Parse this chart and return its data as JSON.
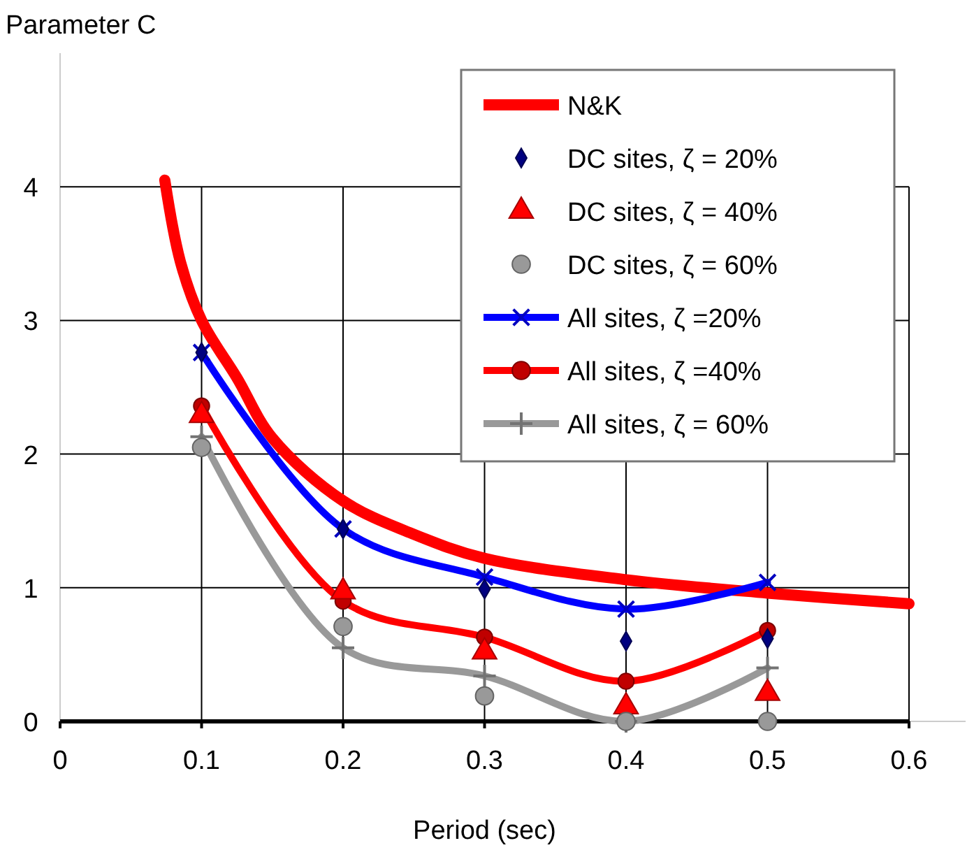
{
  "chart_data": {
    "type": "line",
    "ylabel": "Parameter C",
    "xlabel": "Period (sec)",
    "xlim": [
      0,
      0.64
    ],
    "ylim": [
      0,
      5
    ],
    "xticks": [
      0,
      0.1,
      0.2,
      0.3,
      0.4,
      0.5,
      0.6
    ],
    "yticks": [
      0,
      1,
      2,
      3,
      4
    ],
    "grid": true,
    "legend": "top right",
    "series": [
      {
        "name": "N&K",
        "type": "line",
        "marker": "none",
        "color": "#ff0000",
        "x": [
          0.074,
          0.085,
          0.1,
          0.125,
          0.15,
          0.2,
          0.25,
          0.3,
          0.4,
          0.5,
          0.6
        ],
        "values": [
          4.05,
          3.44,
          3.0,
          2.57,
          2.12,
          1.65,
          1.4,
          1.22,
          1.06,
          0.96,
          0.88
        ]
      },
      {
        "name": "DC sites, ζ = 20%",
        "type": "scatter",
        "marker": "diamond",
        "color": "#000080",
        "x": [
          0.1,
          0.2,
          0.3,
          0.4,
          0.5
        ],
        "values": [
          2.76,
          1.44,
          0.99,
          0.6,
          0.62
        ]
      },
      {
        "name": "DC sites, ζ = 40%",
        "type": "scatter",
        "marker": "triangle",
        "color": "#ff0000",
        "x": [
          0.1,
          0.2,
          0.3,
          0.4,
          0.5
        ],
        "values": [
          2.29,
          0.97,
          0.52,
          0.11,
          0.21
        ]
      },
      {
        "name": "DC sites, ζ = 60%",
        "type": "scatter",
        "marker": "circle",
        "color": "#999999",
        "x": [
          0.1,
          0.2,
          0.3,
          0.4,
          0.5
        ],
        "values": [
          2.05,
          0.71,
          0.19,
          0,
          0
        ]
      },
      {
        "name": "All sites, ζ =20%",
        "type": "line",
        "marker": "cross",
        "color": "#0000ff",
        "x": [
          0.1,
          0.2,
          0.3,
          0.4,
          0.5
        ],
        "values": [
          2.76,
          1.44,
          1.08,
          0.84,
          1.04
        ]
      },
      {
        "name": "All sites, ζ =40%",
        "type": "line",
        "marker": "circle",
        "color": "#ff0000",
        "x": [
          0.1,
          0.2,
          0.3,
          0.4,
          0.5
        ],
        "values": [
          2.36,
          0.9,
          0.63,
          0.3,
          0.68
        ]
      },
      {
        "name": "All sites, ζ = 60%",
        "type": "line",
        "marker": "cross",
        "color": "#999999",
        "x": [
          0.1,
          0.2,
          0.3,
          0.4,
          0.5
        ],
        "values": [
          2.13,
          0.55,
          0.34,
          0,
          0.4
        ]
      }
    ]
  }
}
